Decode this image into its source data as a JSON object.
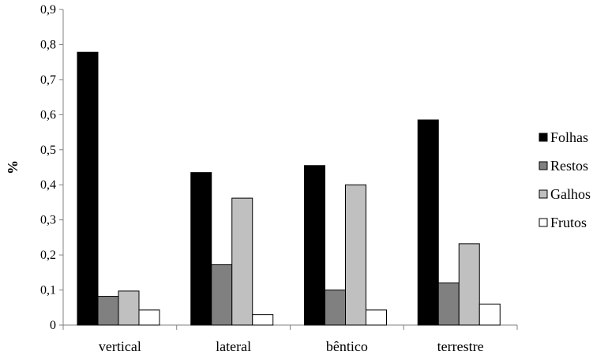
{
  "chart_data": {
    "type": "bar",
    "categories": [
      "vertical",
      "lateral",
      "bêntico",
      "terrestre"
    ],
    "series": [
      {
        "name": "Folhas",
        "values": [
          0.778,
          0.435,
          0.455,
          0.585
        ],
        "color": "#000000"
      },
      {
        "name": "Restos",
        "values": [
          0.082,
          0.172,
          0.1,
          0.12
        ],
        "color": "#808080"
      },
      {
        "name": "Galhos",
        "values": [
          0.097,
          0.362,
          0.4,
          0.232
        ],
        "color": "#c0c0c0"
      },
      {
        "name": "Frutos",
        "values": [
          0.043,
          0.03,
          0.043,
          0.06
        ],
        "color": "#ffffff"
      }
    ],
    "ylabel": "%",
    "xlabel": "",
    "ylim": [
      0,
      0.9
    ],
    "yticks": [
      0,
      0.1,
      0.2,
      0.3,
      0.4,
      0.5,
      0.6,
      0.7,
      0.8,
      0.9
    ],
    "ytick_labels": [
      "0",
      "0,1",
      "0,2",
      "0,3",
      "0,4",
      "0,5",
      "0,6",
      "0,7",
      "0,8",
      "0,9"
    ],
    "grid": false,
    "legend_position": "right"
  }
}
